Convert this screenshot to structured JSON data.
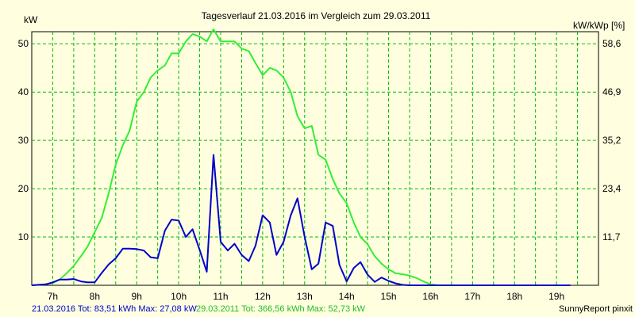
{
  "chart_data": {
    "type": "line",
    "title": "Tagesverlauf 21.03.2016 im Vergleich zum 29.03.2011",
    "ylabel_left": "kW",
    "ylabel_right": "kW/kWp [%]",
    "ylim": [
      0,
      52.5
    ],
    "left_ticks": [
      "50",
      "40",
      "30",
      "20",
      "10"
    ],
    "left_tick_values": [
      50,
      40,
      30,
      20,
      10
    ],
    "right_ticks": [
      "58,6",
      "46,9",
      "35,2",
      "23,4",
      "11,7"
    ],
    "x_ticks": [
      "7h",
      "8h",
      "9h",
      "10h",
      "11h",
      "12h",
      "13h",
      "14h",
      "15h",
      "16h",
      "17h",
      "18h",
      "19h"
    ],
    "x_tick_values": [
      7,
      8,
      9,
      10,
      11,
      12,
      13,
      14,
      15,
      16,
      17,
      18,
      19
    ],
    "xlim": [
      6.5,
      20.0
    ],
    "grid": true,
    "series": [
      {
        "name": "21.03.2016",
        "color": "#0000cc",
        "x": [
          6.5,
          6.83,
          7.0,
          7.17,
          7.33,
          7.5,
          7.67,
          7.83,
          8.0,
          8.17,
          8.33,
          8.5,
          8.67,
          8.83,
          9.0,
          9.17,
          9.33,
          9.5,
          9.67,
          9.83,
          10.0,
          10.17,
          10.33,
          10.5,
          10.67,
          10.83,
          11.0,
          11.17,
          11.33,
          11.5,
          11.67,
          11.83,
          12.0,
          12.17,
          12.33,
          12.5,
          12.67,
          12.83,
          13.0,
          13.17,
          13.33,
          13.5,
          13.67,
          13.83,
          14.0,
          14.17,
          14.33,
          14.5,
          14.67,
          14.83,
          15.0,
          15.17,
          15.33,
          15.5,
          15.67,
          15.83,
          16.0,
          16.17,
          16.33,
          16.5,
          16.67,
          16.83,
          17.0,
          17.17,
          17.33,
          17.5,
          17.67,
          17.83,
          18.0,
          18.17,
          18.33,
          18.5,
          18.67,
          18.83,
          19.0,
          19.17,
          19.33
        ],
        "values": [
          0,
          0.2,
          0.6,
          1.2,
          1.2,
          1.3,
          0.8,
          0.6,
          0.6,
          2.6,
          4.3,
          5.6,
          7.6,
          7.6,
          7.5,
          7.2,
          5.8,
          5.6,
          11.3,
          13.6,
          13.4,
          10.0,
          11.6,
          7.3,
          2.8,
          27.0,
          9.0,
          7.2,
          8.6,
          6.3,
          5.0,
          8.2,
          14.5,
          13.0,
          6.3,
          9.0,
          14.5,
          18.0,
          10.0,
          3.3,
          4.5,
          13.0,
          12.3,
          4.2,
          0.8,
          3.6,
          4.8,
          2.2,
          0.7,
          1.6,
          0.9,
          0.4,
          0.1,
          0,
          0,
          0,
          0,
          0,
          0,
          0,
          0,
          0,
          0,
          0,
          0,
          0,
          0,
          0,
          0,
          0,
          0,
          0,
          0,
          0,
          0,
          0,
          0
        ]
      },
      {
        "name": "29.03.2011",
        "color": "#33ee33",
        "x": [
          6.5,
          6.83,
          7.0,
          7.17,
          7.33,
          7.5,
          7.67,
          7.83,
          8.0,
          8.17,
          8.33,
          8.5,
          8.67,
          8.83,
          9.0,
          9.17,
          9.33,
          9.5,
          9.67,
          9.83,
          10.0,
          10.17,
          10.33,
          10.5,
          10.67,
          10.83,
          11.0,
          11.17,
          11.33,
          11.5,
          11.67,
          11.83,
          12.0,
          12.17,
          12.33,
          12.5,
          12.67,
          12.83,
          13.0,
          13.17,
          13.33,
          13.5,
          13.67,
          13.83,
          14.0,
          14.17,
          14.33,
          14.5,
          14.67,
          14.83,
          15.0,
          15.17,
          15.33,
          15.5,
          15.67,
          15.83,
          16.0,
          16.17,
          16.33,
          16.5,
          16.67,
          16.83,
          17.0,
          17.17,
          17.33,
          17.5,
          17.67,
          17.83,
          18.0,
          18.17,
          18.33,
          18.5,
          18.67,
          18.83,
          19.0,
          19.17,
          19.33
        ],
        "values": [
          0,
          0.2,
          0.5,
          1.2,
          2.5,
          4.0,
          6.0,
          8.0,
          11.0,
          14.0,
          19.0,
          25.0,
          29.0,
          32.0,
          38.0,
          40.0,
          43.0,
          44.5,
          45.5,
          48.0,
          48.0,
          50.5,
          52.0,
          51.5,
          50.5,
          53.0,
          50.5,
          50.5,
          50.5,
          49.0,
          48.5,
          46.0,
          43.5,
          45.0,
          44.5,
          43.0,
          40.0,
          35.0,
          32.5,
          33.0,
          27.0,
          26.0,
          22.0,
          19.0,
          17.0,
          13.0,
          10.0,
          8.5,
          6.0,
          4.5,
          3.3,
          2.5,
          2.3,
          2.0,
          1.5,
          0.8,
          0.2,
          0,
          0,
          0,
          0,
          0,
          0,
          0,
          0,
          0,
          0,
          0,
          0,
          0,
          0,
          0,
          0,
          0,
          0,
          0,
          0
        ]
      }
    ]
  },
  "footer": {
    "series1_info": "21.03.2016 Tot: 83,51 kWh Max: 27,08 kW",
    "series2_info": "29.03.2011 Tot: 366,56 kWh Max: 52,73 kW",
    "credit": "SunnyReport pinxit"
  }
}
